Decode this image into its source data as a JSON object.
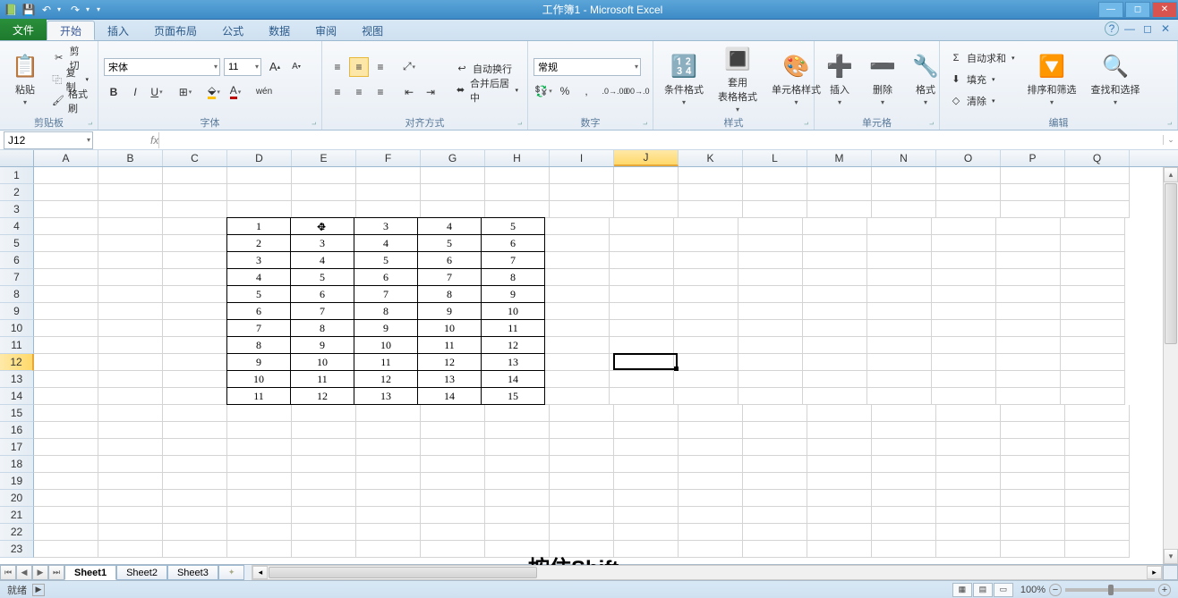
{
  "window": {
    "title": "工作簿1 - Microsoft Excel"
  },
  "tabs": {
    "file": "文件",
    "items": [
      "开始",
      "插入",
      "页面布局",
      "公式",
      "数据",
      "审阅",
      "视图"
    ],
    "active": 0
  },
  "ribbon": {
    "clipboard": {
      "label": "剪贴板",
      "paste": "粘贴",
      "cut": "剪切",
      "copy": "复制",
      "painter": "格式刷"
    },
    "font": {
      "label": "字体",
      "name": "宋体",
      "size": "11"
    },
    "align": {
      "label": "对齐方式",
      "wrap": "自动换行",
      "merge": "合并后居中"
    },
    "number": {
      "label": "数字",
      "format": "常规"
    },
    "styles": {
      "label": "样式",
      "cond": "条件格式",
      "table": "套用\n表格格式",
      "cell": "单元格样式"
    },
    "cells": {
      "label": "单元格",
      "insert": "插入",
      "delete": "删除",
      "format": "格式"
    },
    "editing": {
      "label": "编辑",
      "sum": "自动求和",
      "fill": "填充",
      "clear": "清除",
      "sort": "排序和筛选",
      "find": "查找和选择"
    }
  },
  "nameBox": "J12",
  "columns": [
    "A",
    "B",
    "C",
    "D",
    "E",
    "F",
    "G",
    "H",
    "I",
    "J",
    "K",
    "L",
    "M",
    "N",
    "O",
    "P",
    "Q"
  ],
  "selectedCol": "J",
  "rowCount": 23,
  "selectedRow": 12,
  "dataRegion": {
    "startRow": 4,
    "endRow": 14,
    "startCol": 3,
    "endCol": 7,
    "rows": [
      [
        1,
        2,
        3,
        4,
        5
      ],
      [
        2,
        3,
        4,
        5,
        6
      ],
      [
        3,
        4,
        5,
        6,
        7
      ],
      [
        4,
        5,
        6,
        7,
        8
      ],
      [
        5,
        6,
        7,
        8,
        9
      ],
      [
        6,
        7,
        8,
        9,
        10
      ],
      [
        7,
        8,
        9,
        10,
        11
      ],
      [
        8,
        9,
        10,
        11,
        12
      ],
      [
        9,
        10,
        11,
        12,
        13
      ],
      [
        10,
        11,
        12,
        13,
        14
      ],
      [
        11,
        12,
        13,
        14,
        15
      ]
    ]
  },
  "activeCell": {
    "col": 9,
    "row": 12
  },
  "sheets": [
    "Sheet1",
    "Sheet2",
    "Sheet3"
  ],
  "activeSheet": 0,
  "status": {
    "ready": "就绪",
    "zoom": "100%"
  },
  "overlay": "按住Shift",
  "colors": {
    "accent": "#4a8fc2",
    "selHeader": "#ffd96a",
    "gridline": "#d4d4d4",
    "dataBorder": "#000000"
  }
}
